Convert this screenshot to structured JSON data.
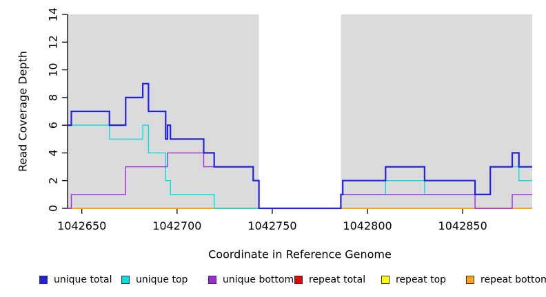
{
  "chart_data": {
    "type": "line",
    "subtype": "step-coverage-plot",
    "title": "",
    "xlabel": "Coordinate in Reference Genome",
    "ylabel": "Read Coverage Depth",
    "xlim": [
      1042642.5,
      1042886.5
    ],
    "ylim": [
      0,
      14
    ],
    "x_ticks": [
      1042650,
      1042700,
      1042750,
      1042800,
      1042850
    ],
    "y_ticks": [
      0,
      2,
      4,
      6,
      8,
      10,
      12,
      14
    ],
    "grid": false,
    "background_color": "#ffffff",
    "shaded_region_color": "#dbdbdb",
    "shaded_regions": [
      {
        "from": 1042642.5,
        "to": 1042743
      },
      {
        "from": 1042786,
        "to": 1042886.5
      }
    ],
    "draw_order": [
      "repeat_total",
      "repeat_top",
      "repeat_bottom",
      "unique_top",
      "unique_bottom",
      "unique_total"
    ],
    "series": [
      {
        "key": "unique_total",
        "name": "unique total",
        "color": "#2222dd",
        "steps": [
          [
            1042642.5,
            6
          ],
          [
            1042644.5,
            7
          ],
          [
            1042664.5,
            6
          ],
          [
            1042673,
            8
          ],
          [
            1042682,
            9
          ],
          [
            1042685,
            7
          ],
          [
            1042694,
            5
          ],
          [
            1042695,
            6
          ],
          [
            1042696.5,
            5
          ],
          [
            1042714,
            4
          ],
          [
            1042719.5,
            3
          ],
          [
            1042740,
            2
          ],
          [
            1042743,
            0
          ],
          [
            1042786,
            1
          ],
          [
            1042787,
            2
          ],
          [
            1042809.5,
            3
          ],
          [
            1042830,
            2
          ],
          [
            1042856.5,
            1
          ],
          [
            1042864.5,
            3
          ],
          [
            1042876,
            4
          ],
          [
            1042879.5,
            3
          ]
        ]
      },
      {
        "key": "unique_top",
        "name": "unique top",
        "color": "#00dede",
        "steps": [
          [
            1042642.5,
            6
          ],
          [
            1042664.5,
            5
          ],
          [
            1042682,
            6
          ],
          [
            1042685,
            4
          ],
          [
            1042694,
            2
          ],
          [
            1042696.5,
            1
          ],
          [
            1042719.5,
            0
          ],
          [
            1042786,
            1
          ],
          [
            1042809.5,
            2
          ],
          [
            1042830,
            1
          ],
          [
            1042864.5,
            3
          ],
          [
            1042879.5,
            2
          ]
        ]
      },
      {
        "key": "unique_bottom",
        "name": "unique bottom",
        "color": "#9d2bdb",
        "steps": [
          [
            1042642.5,
            0
          ],
          [
            1042644.5,
            1
          ],
          [
            1042673,
            3
          ],
          [
            1042695,
            4
          ],
          [
            1042714,
            3
          ],
          [
            1042740,
            2
          ],
          [
            1042743,
            0
          ],
          [
            1042786,
            1
          ],
          [
            1042856.5,
            0
          ],
          [
            1042876,
            1
          ]
        ]
      },
      {
        "key": "repeat_total",
        "name": "repeat total",
        "color": "#e60000",
        "steps": [
          [
            1042642.5,
            0
          ]
        ]
      },
      {
        "key": "repeat_top",
        "name": "repeat top",
        "color": "#ffff00",
        "steps": [
          [
            1042642.5,
            0
          ]
        ]
      },
      {
        "key": "repeat_bottom",
        "name": "repeat bottom",
        "color": "#ffa216",
        "steps": [
          [
            1042642.5,
            0
          ]
        ]
      }
    ],
    "legend_position": "bottom"
  },
  "legend": {
    "items": [
      {
        "label": "unique total",
        "color": "#2222dd"
      },
      {
        "label": "unique top",
        "color": "#00dede"
      },
      {
        "label": "unique bottom",
        "color": "#9d2bdb"
      },
      {
        "label": "repeat total",
        "color": "#e60000"
      },
      {
        "label": "repeat top",
        "color": "#ffff00"
      },
      {
        "label": "repeat bottom",
        "color": "#ffa216"
      }
    ]
  }
}
